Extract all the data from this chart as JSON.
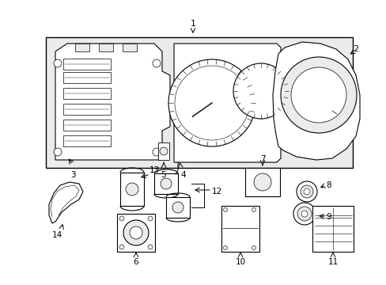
{
  "bg_color": "#ffffff",
  "lc": "#000000",
  "fig_w": 4.89,
  "fig_h": 3.6,
  "dpi": 100,
  "gray": "#d8d8d8",
  "lgray": "#ebebeb"
}
